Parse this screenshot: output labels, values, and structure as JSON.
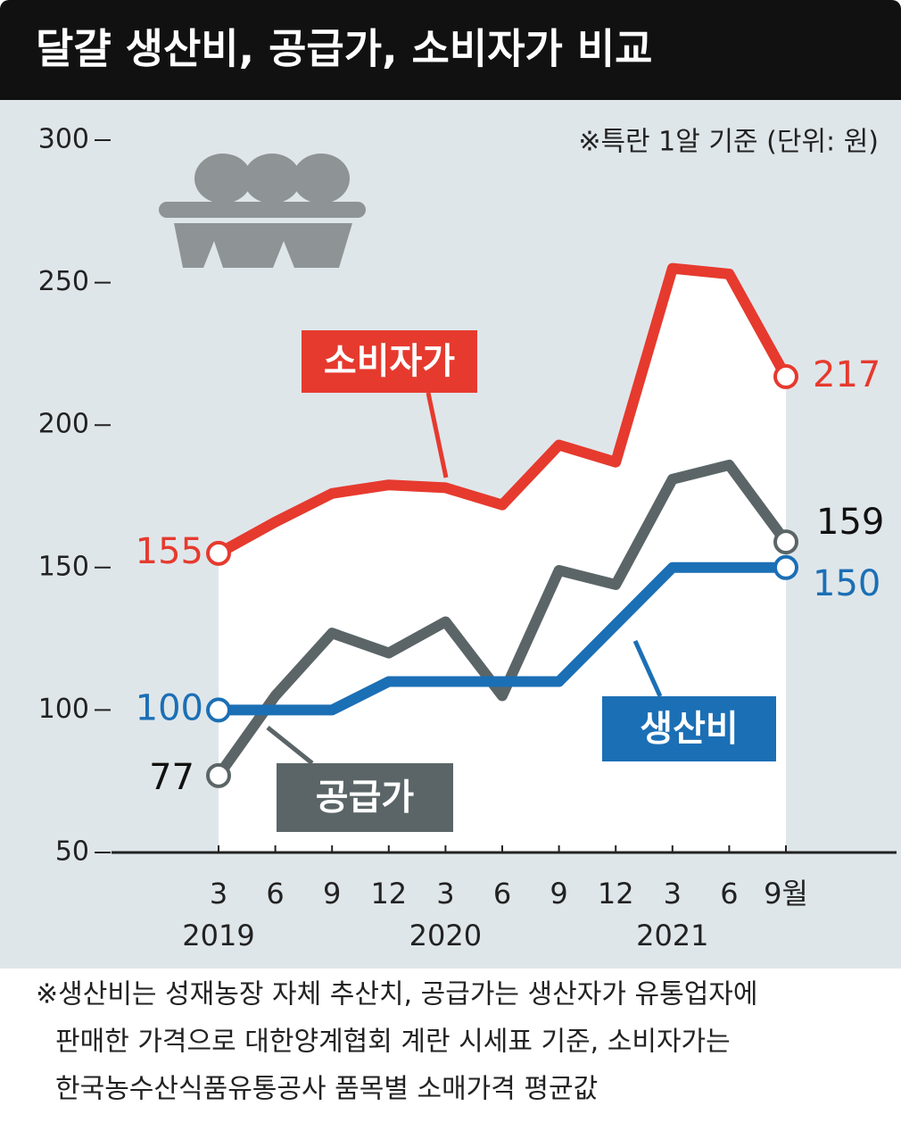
{
  "chart_data": {
    "type": "line",
    "title": "달걀 생산비, 공급가, 소비자가 비교",
    "note": "※특란 1알 기준   (단위: 원)",
    "categories": [
      "3",
      "6",
      "9",
      "12",
      "3",
      "6",
      "9",
      "12",
      "3",
      "6",
      "9월"
    ],
    "year_labels": [
      "2019",
      null,
      null,
      null,
      "2020",
      null,
      null,
      null,
      "2021",
      null,
      null
    ],
    "series": [
      {
        "name": "소비자가",
        "color": "#e63a2e",
        "values": [
          155,
          166,
          176,
          179,
          178,
          172,
          193,
          187,
          255,
          253,
          217
        ]
      },
      {
        "name": "공급가",
        "color": "#5b6567",
        "values": [
          77,
          105,
          127,
          120,
          131,
          105,
          149,
          144,
          181,
          186,
          159
        ]
      },
      {
        "name": "생산비",
        "color": "#1b6fb5",
        "values": [
          100,
          100,
          100,
          110,
          110,
          110,
          110,
          130,
          150,
          150,
          150
        ]
      }
    ],
    "ylim": [
      50,
      300
    ],
    "yticks": [
      50,
      100,
      150,
      200,
      250,
      300
    ],
    "footnote": [
      "※생산비는 성재농장 자체 추산치, 공급가는 생산자가 유통업자에",
      "판매한 가격으로 대한양계협회 계란 시세표 기준, 소비자가는",
      "한국농수산식품유통공사 품목별 소매가격 평균값"
    ]
  }
}
